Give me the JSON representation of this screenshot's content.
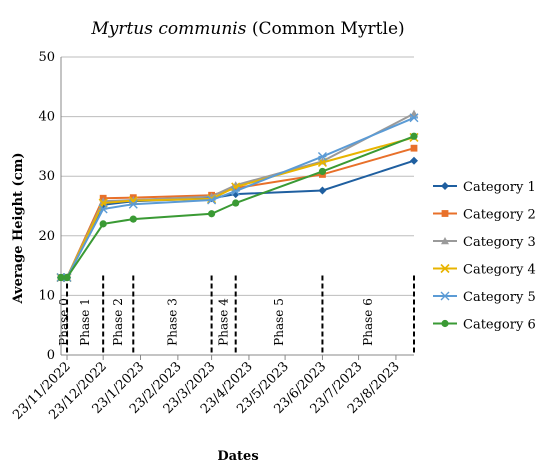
{
  "chart_data": {
    "type": "line",
    "title_parts": [
      {
        "text": "Myrtus communis",
        "italic": true
      },
      {
        "text": " (Common Myrtle)",
        "italic": false
      }
    ],
    "xlabel": "Dates",
    "ylabel": "Average Height (cm)",
    "ylim": [
      0,
      50
    ],
    "yticks": [
      0,
      10,
      20,
      30,
      40,
      50
    ],
    "xticks": [
      "23/11/2022",
      "23/12/2022",
      "23/1/2023",
      "23/2/2023",
      "23/3/2023",
      "23/4/2023",
      "23/5/2023",
      "23/6/2023",
      "23/7/2023",
      "23/8/2023"
    ],
    "xtick_days": [
      0,
      30,
      61,
      92,
      120,
      151,
      181,
      212,
      242,
      273
    ],
    "x_days_max": 288,
    "x_dates_days": [
      -5,
      0,
      30,
      55,
      120,
      140,
      212,
      288
    ],
    "grid": "horizontal",
    "legend_position": "right",
    "phases": [
      {
        "label": "Phase 0",
        "start": -5,
        "end": 0
      },
      {
        "label": "Phase 1",
        "start": 0,
        "end": 30
      },
      {
        "label": "Phase 2",
        "start": 30,
        "end": 55
      },
      {
        "label": "Phase 3",
        "start": 55,
        "end": 120
      },
      {
        "label": "Phase 4",
        "start": 120,
        "end": 140
      },
      {
        "label": "Phase 5",
        "start": 140,
        "end": 212
      },
      {
        "label": "Phase 6",
        "start": 212,
        "end": 288
      }
    ],
    "series": [
      {
        "name": "Category 1",
        "color": "#1f5fa0",
        "marker": "diamond",
        "values": [
          13,
          13,
          25.2,
          25.8,
          26.3,
          27.0,
          27.6,
          32.6
        ]
      },
      {
        "name": "Category 2",
        "color": "#e8702a",
        "marker": "square",
        "values": [
          13,
          13,
          26.3,
          26.4,
          26.8,
          28.0,
          30.3,
          34.7
        ]
      },
      {
        "name": "Category 3",
        "color": "#9a9a9a",
        "marker": "triangle",
        "values": [
          13,
          13,
          25.8,
          26.0,
          26.6,
          28.5,
          32.5,
          40.5
        ]
      },
      {
        "name": "Category 4",
        "color": "#e8b400",
        "marker": "x",
        "values": [
          13,
          13,
          25.5,
          25.9,
          26.2,
          28.2,
          32.3,
          36.5
        ]
      },
      {
        "name": "Category 5",
        "color": "#5b9bd5",
        "marker": "star",
        "values": [
          13,
          13,
          24.5,
          25.3,
          26.0,
          27.5,
          33.3,
          39.8
        ]
      },
      {
        "name": "Category 6",
        "color": "#3a9a34",
        "marker": "circle",
        "values": [
          13,
          13,
          22.0,
          22.8,
          23.7,
          25.5,
          30.8,
          36.7
        ]
      }
    ]
  }
}
